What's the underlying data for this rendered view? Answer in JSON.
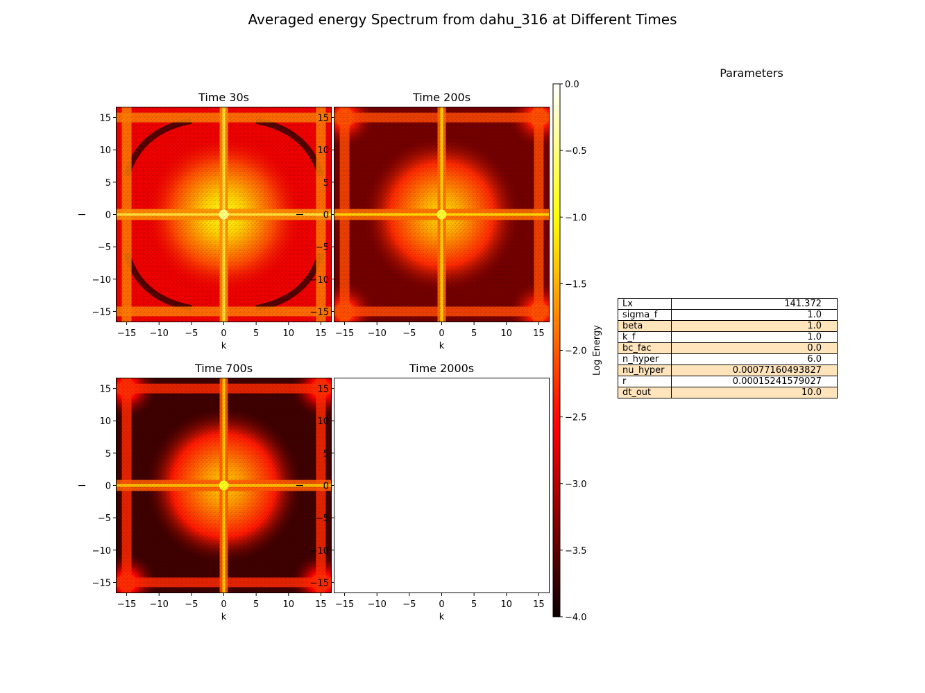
{
  "figure": {
    "title": "Averaged energy Spectrum from dahu_316 at Different Times"
  },
  "chart_data": {
    "type": "heatmap",
    "colormap": "hot",
    "colorbar": {
      "label": "Log Energy",
      "range": [
        -4.0,
        0.0
      ],
      "ticks": [
        "0.0",
        "−0.5",
        "−1.0",
        "−1.5",
        "−2.0",
        "−2.5",
        "−3.0",
        "−3.5",
        "−4.0"
      ],
      "tick_values": [
        0.0,
        -0.5,
        -1.0,
        -1.5,
        -2.0,
        -2.5,
        -3.0,
        -3.5,
        -4.0
      ]
    },
    "xlim": [
      -16.67,
      16.67
    ],
    "ylim": [
      -16.67,
      16.67
    ],
    "xticks": [
      -15,
      -10,
      -5,
      0,
      5,
      10,
      15
    ],
    "yticks": [
      15,
      10,
      5,
      0,
      -5,
      -10,
      -15
    ],
    "xtick_labels": [
      "−15",
      "−10",
      "−5",
      "0",
      "5",
      "10",
      "15"
    ],
    "ytick_labels": [
      "15",
      "10",
      "5",
      "0",
      "−5",
      "−10",
      "−15"
    ],
    "panels": [
      {
        "title": "Time 30s",
        "xlabel": "k",
        "ylabel": "l",
        "has_data": true,
        "features": {
          "center_peak": -0.9,
          "axis_band": -1.7,
          "band_at_15": -1.8,
          "background": -2.7,
          "arc_min": -3.8
        }
      },
      {
        "title": "Time 200s",
        "xlabel": "k",
        "ylabel": "l",
        "has_data": true,
        "features": {
          "center_peak": -1.2,
          "axis_band": -1.9,
          "band_at_15": -2.1,
          "background": -3.4,
          "corner_peak": -1.1
        }
      },
      {
        "title": "Time 700s",
        "xlabel": "k",
        "ylabel": "l",
        "has_data": true,
        "features": {
          "center_peak": -1.3,
          "axis_band": -2.0,
          "band_at_15": -2.3,
          "background": -3.7,
          "corner_peak": -1.6
        }
      },
      {
        "title": "Time 2000s",
        "xlabel": "k",
        "ylabel": "l",
        "has_data": false
      }
    ]
  },
  "parameters": {
    "title": "Parameters",
    "highlight_color": "#ffe4bc",
    "rows": [
      {
        "name": "Lx",
        "value": "141.372"
      },
      {
        "name": "sigma_f",
        "value": "1.0"
      },
      {
        "name": "beta",
        "value": "1.0"
      },
      {
        "name": "k_f",
        "value": "1.0"
      },
      {
        "name": "bc_fac",
        "value": "0.0"
      },
      {
        "name": "n_hyper",
        "value": "6.0"
      },
      {
        "name": "nu_hyper",
        "value": "0.00077160493827"
      },
      {
        "name": "r",
        "value": "0.00015241579027"
      },
      {
        "name": "dt_out",
        "value": "10.0"
      }
    ]
  }
}
